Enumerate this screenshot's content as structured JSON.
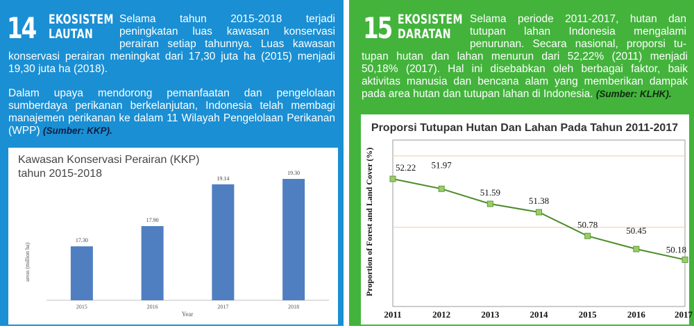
{
  "left": {
    "number": "14",
    "section_line1": "EKOSISTEM",
    "section_line2": "LAUTAN",
    "intro_lines": [
      "Selama tahun 2015-2018 terjadi",
      "peningkatan luas kawasan konservasi",
      "perairan setiap tahunnya. Luas kawasan"
    ],
    "p1_rest": "konservasi perairan meningkat dari 17,30 juta ha (2015) menjadi 19,30 juta ha (2018).",
    "p2": "Dalam upaya mendorong pemanfaatan dan pengelolaan sumberdaya perikanan berkelanjutan, Indonesia telah membagi manajemen perikanan ke dalam 11 Wilayah Pengelolaan Perikanan (WPP)",
    "source": "(Sumber: KKP)."
  },
  "right": {
    "number": "15",
    "section_line1": "EKOSISTEM",
    "section_line2": "DARATAN",
    "intro_lines": [
      "Selama periode 2011-2017, hutan dan",
      "tutupan lahan Indonesia mengalami",
      "penurunan. Secara nasional, proporsi tu-"
    ],
    "p_rest": "tupan hutan dan lahan menurun dari 52,22% (2011) menjadi 50,18% (2017). Hal ini disebabkan oleh berbagai faktor, baik aktivitas manusia dan bencana alam yang memberikan dampak pada area hutan dan tutupan lahan di Indonesia.",
    "source": "(Sumber: KLHK)."
  },
  "colors": {
    "left_bg": "#1a8fd3",
    "right_bg": "#43b33c",
    "bar": "#4f7fc0",
    "line": "#4a8c2a",
    "marker": "#9ccc6a",
    "ref_line": "#f3c9a0"
  },
  "chart_data": [
    {
      "type": "bar",
      "title": "Kawasan Konservasi Perairan (KKP)",
      "subtitle": "tahun 2015-2018",
      "xlabel": "Year",
      "ylabel": "areas (million ha)",
      "categories": [
        "2015",
        "2016",
        "2017",
        "2018"
      ],
      "values": [
        17.3,
        17.9,
        19.14,
        19.3
      ],
      "value_labels": [
        "17.30",
        "17.90",
        "19.14",
        "19.30"
      ],
      "grid": false,
      "legend": "none"
    },
    {
      "type": "line",
      "title": "Proporsi Tutupan Hutan Dan Lahan Pada Tahun 2011-2017",
      "xlabel": "",
      "ylabel": "Proportion of Forest and Land Cover (%)",
      "x": [
        "2011",
        "2012",
        "2013",
        "2014",
        "2015",
        "2016",
        "2017"
      ],
      "values": [
        52.22,
        51.97,
        51.59,
        51.38,
        50.78,
        50.45,
        50.18
      ],
      "value_labels": [
        "52.22",
        "51.97",
        "51.59",
        "51.38",
        "50.78",
        "50.45",
        "50.18"
      ],
      "grid": true,
      "legend": "none"
    }
  ]
}
